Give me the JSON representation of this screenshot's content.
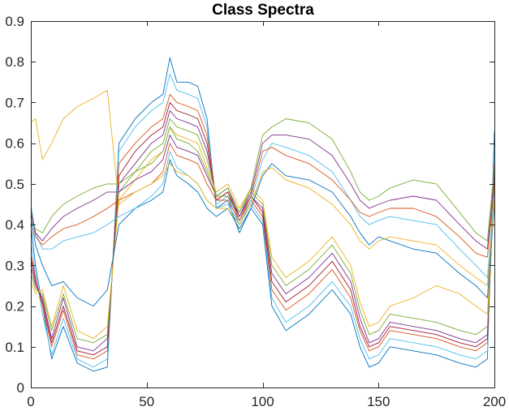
{
  "chart_data": {
    "type": "line",
    "title": "Class Spectra",
    "xlabel": "",
    "ylabel": "",
    "xlim": [
      0,
      200
    ],
    "ylim": [
      0,
      0.9
    ],
    "xticks": [
      0,
      50,
      100,
      150,
      200
    ],
    "yticks": [
      0,
      0.1,
      0.2,
      0.3,
      0.4,
      0.5,
      0.6,
      0.7,
      0.8,
      0.9
    ],
    "ytick_labels": [
      "0",
      "0.1",
      "0.2",
      "0.3",
      "0.4",
      "0.5",
      "0.6",
      "0.7",
      "0.8",
      "0.9"
    ],
    "grid": false,
    "legend": false,
    "x": [
      0,
      2,
      5,
      9,
      14,
      20,
      27,
      33,
      38,
      45,
      52,
      57,
      60,
      63,
      68,
      72,
      76,
      80,
      85,
      90,
      95,
      100,
      104,
      110,
      120,
      130,
      138,
      142,
      146,
      150,
      155,
      165,
      175,
      185,
      192,
      197,
      200
    ],
    "series": [
      {
        "color": "#0072BD",
        "values": [
          0.4,
          0.3,
          0.2,
          0.07,
          0.15,
          0.06,
          0.04,
          0.05,
          0.6,
          0.66,
          0.7,
          0.72,
          0.81,
          0.75,
          0.75,
          0.74,
          0.66,
          0.44,
          0.46,
          0.38,
          0.44,
          0.4,
          0.2,
          0.14,
          0.18,
          0.24,
          0.18,
          0.1,
          0.05,
          0.06,
          0.1,
          0.09,
          0.08,
          0.06,
          0.05,
          0.07,
          0.63
        ]
      },
      {
        "color": "#4DBEEE",
        "values": [
          0.36,
          0.28,
          0.18,
          0.08,
          0.17,
          0.07,
          0.05,
          0.07,
          0.58,
          0.64,
          0.68,
          0.7,
          0.77,
          0.73,
          0.72,
          0.71,
          0.64,
          0.45,
          0.47,
          0.4,
          0.45,
          0.41,
          0.22,
          0.16,
          0.2,
          0.26,
          0.2,
          0.12,
          0.07,
          0.08,
          0.12,
          0.11,
          0.1,
          0.08,
          0.07,
          0.09,
          0.58
        ]
      },
      {
        "color": "#D95319",
        "values": [
          0.33,
          0.27,
          0.2,
          0.1,
          0.19,
          0.08,
          0.07,
          0.09,
          0.55,
          0.6,
          0.64,
          0.66,
          0.72,
          0.7,
          0.69,
          0.68,
          0.62,
          0.46,
          0.48,
          0.41,
          0.46,
          0.42,
          0.24,
          0.19,
          0.23,
          0.29,
          0.22,
          0.14,
          0.09,
          0.1,
          0.14,
          0.13,
          0.12,
          0.1,
          0.09,
          0.11,
          0.55
        ]
      },
      {
        "color": "#A2142F",
        "values": [
          0.32,
          0.26,
          0.21,
          0.11,
          0.2,
          0.09,
          0.08,
          0.1,
          0.52,
          0.58,
          0.62,
          0.64,
          0.7,
          0.68,
          0.67,
          0.66,
          0.6,
          0.46,
          0.48,
          0.42,
          0.47,
          0.43,
          0.26,
          0.21,
          0.25,
          0.31,
          0.24,
          0.15,
          0.1,
          0.11,
          0.15,
          0.14,
          0.13,
          0.11,
          0.1,
          0.12,
          0.53
        ]
      },
      {
        "color": "#7E2F8E",
        "values": [
          0.3,
          0.25,
          0.22,
          0.12,
          0.22,
          0.1,
          0.09,
          0.12,
          0.5,
          0.55,
          0.6,
          0.62,
          0.68,
          0.66,
          0.65,
          0.64,
          0.58,
          0.47,
          0.49,
          0.42,
          0.47,
          0.44,
          0.28,
          0.23,
          0.27,
          0.33,
          0.26,
          0.17,
          0.11,
          0.12,
          0.16,
          0.15,
          0.14,
          0.12,
          0.11,
          0.13,
          0.52
        ]
      },
      {
        "color": "#77AC30",
        "values": [
          0.28,
          0.24,
          0.23,
          0.14,
          0.23,
          0.12,
          0.11,
          0.13,
          0.48,
          0.53,
          0.58,
          0.6,
          0.66,
          0.64,
          0.63,
          0.62,
          0.56,
          0.47,
          0.49,
          0.43,
          0.48,
          0.45,
          0.3,
          0.25,
          0.29,
          0.35,
          0.28,
          0.19,
          0.13,
          0.14,
          0.18,
          0.17,
          0.16,
          0.14,
          0.13,
          0.15,
          0.51
        ]
      },
      {
        "color": "#EDB120",
        "values": [
          0.26,
          0.23,
          0.24,
          0.15,
          0.25,
          0.14,
          0.12,
          0.15,
          0.46,
          0.51,
          0.56,
          0.58,
          0.64,
          0.62,
          0.61,
          0.6,
          0.54,
          0.48,
          0.5,
          0.44,
          0.49,
          0.46,
          0.32,
          0.27,
          0.31,
          0.37,
          0.3,
          0.21,
          0.15,
          0.16,
          0.2,
          0.22,
          0.25,
          0.23,
          0.2,
          0.18,
          0.5
        ]
      },
      {
        "color": "#0072BD",
        "values": [
          0.42,
          0.35,
          0.3,
          0.25,
          0.26,
          0.22,
          0.2,
          0.24,
          0.4,
          0.44,
          0.46,
          0.48,
          0.56,
          0.52,
          0.5,
          0.48,
          0.44,
          0.42,
          0.44,
          0.39,
          0.44,
          0.52,
          0.55,
          0.52,
          0.51,
          0.48,
          0.42,
          0.38,
          0.35,
          0.37,
          0.36,
          0.34,
          0.33,
          0.28,
          0.25,
          0.22,
          0.45
        ]
      },
      {
        "color": "#4DBEEE",
        "values": [
          0.45,
          0.38,
          0.34,
          0.34,
          0.36,
          0.37,
          0.38,
          0.4,
          0.42,
          0.44,
          0.47,
          0.5,
          0.58,
          0.54,
          0.52,
          0.5,
          0.46,
          0.44,
          0.45,
          0.4,
          0.46,
          0.56,
          0.6,
          0.59,
          0.57,
          0.53,
          0.46,
          0.42,
          0.4,
          0.41,
          0.42,
          0.41,
          0.4,
          0.34,
          0.3,
          0.27,
          0.48
        ]
      },
      {
        "color": "#D95319",
        "values": [
          0.44,
          0.37,
          0.35,
          0.37,
          0.39,
          0.4,
          0.42,
          0.44,
          0.46,
          0.48,
          0.5,
          0.53,
          0.6,
          0.57,
          0.56,
          0.55,
          0.5,
          0.46,
          0.46,
          0.41,
          0.47,
          0.58,
          0.59,
          0.57,
          0.55,
          0.51,
          0.46,
          0.43,
          0.42,
          0.43,
          0.44,
          0.44,
          0.42,
          0.37,
          0.33,
          0.32,
          0.5
        ]
      },
      {
        "color": "#7E2F8E",
        "values": [
          0.43,
          0.38,
          0.36,
          0.39,
          0.42,
          0.44,
          0.46,
          0.48,
          0.48,
          0.51,
          0.53,
          0.56,
          0.62,
          0.59,
          0.58,
          0.57,
          0.52,
          0.47,
          0.47,
          0.42,
          0.48,
          0.6,
          0.62,
          0.62,
          0.61,
          0.57,
          0.5,
          0.46,
          0.44,
          0.45,
          0.46,
          0.47,
          0.46,
          0.4,
          0.36,
          0.34,
          0.52
        ]
      },
      {
        "color": "#77AC30",
        "values": [
          0.41,
          0.39,
          0.38,
          0.42,
          0.45,
          0.47,
          0.49,
          0.5,
          0.5,
          0.53,
          0.55,
          0.58,
          0.64,
          0.61,
          0.6,
          0.58,
          0.53,
          0.47,
          0.47,
          0.43,
          0.49,
          0.62,
          0.64,
          0.66,
          0.65,
          0.61,
          0.53,
          0.48,
          0.46,
          0.47,
          0.49,
          0.51,
          0.5,
          0.43,
          0.38,
          0.36,
          0.54
        ]
      },
      {
        "color": "#EDB120",
        "values": [
          0.65,
          0.66,
          0.56,
          0.6,
          0.66,
          0.69,
          0.71,
          0.73,
          0.45,
          0.48,
          0.5,
          0.52,
          0.55,
          0.53,
          0.52,
          0.5,
          0.46,
          0.44,
          0.44,
          0.4,
          0.45,
          0.53,
          0.54,
          0.51,
          0.49,
          0.45,
          0.4,
          0.36,
          0.34,
          0.36,
          0.37,
          0.36,
          0.35,
          0.3,
          0.27,
          0.25,
          0.46
        ]
      }
    ]
  }
}
